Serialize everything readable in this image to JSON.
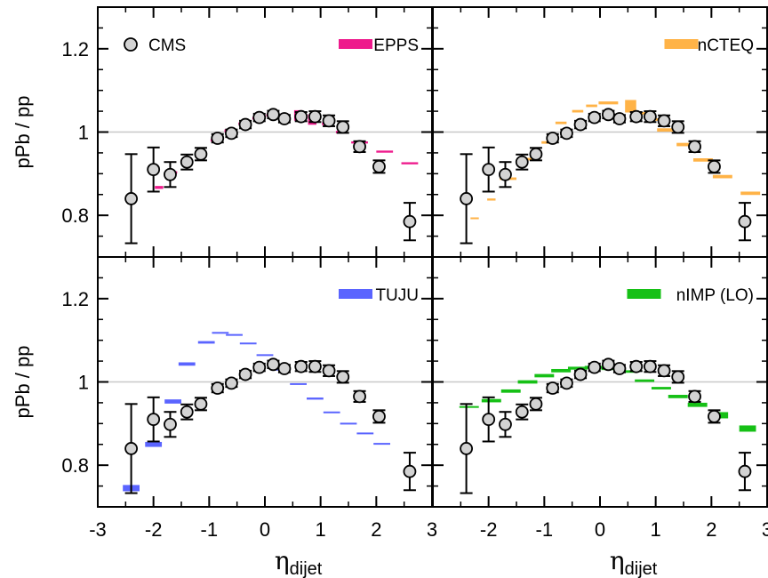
{
  "chart_data": {
    "type": "scatter",
    "xlabel_symbol": "η",
    "xlabel_subscript": "dijet",
    "ylabel": "pPb / pp",
    "xlim": [
      -3,
      3
    ],
    "ylim": [
      0.7,
      1.3
    ],
    "x_ticks": [
      "-3",
      "-2",
      "-1",
      "0",
      "1",
      "2",
      "3"
    ],
    "y_ticks": [
      "0.8",
      "1",
      "1.2"
    ],
    "reference_line": 1.0,
    "cms": {
      "name": "CMS",
      "x": [
        -2.4,
        -2.0,
        -1.7,
        -1.4,
        -1.15,
        -0.85,
        -0.6,
        -0.35,
        -0.1,
        0.15,
        0.35,
        0.65,
        0.9,
        1.15,
        1.4,
        1.7,
        2.05,
        2.6
      ],
      "y": [
        0.84,
        0.91,
        0.898,
        0.928,
        0.947,
        0.985,
        0.997,
        1.018,
        1.035,
        1.042,
        1.032,
        1.037,
        1.037,
        1.027,
        1.012,
        0.965,
        0.917,
        0.785
      ],
      "err": [
        0.107,
        0.053,
        0.03,
        0.018,
        0.015,
        0.01,
        0.009,
        0.009,
        0.009,
        0.009,
        0.009,
        0.011,
        0.013,
        0.013,
        0.014,
        0.013,
        0.015,
        0.045
      ]
    },
    "panels": [
      {
        "name": "EPPS",
        "color": "#ee1a8c",
        "points": [
          {
            "x": -1.9,
            "y": 0.867,
            "w": 0.15,
            "h": 0.007
          },
          {
            "x": -1.65,
            "y": 0.903,
            "w": 0.15,
            "h": 0.006
          },
          {
            "x": -1.4,
            "y": 0.93,
            "w": 0.15,
            "h": 0.006
          },
          {
            "x": -1.15,
            "y": 0.952,
            "w": 0.15,
            "h": 0.006
          },
          {
            "x": -0.9,
            "y": 0.98,
            "w": 0.15,
            "h": 0.006
          },
          {
            "x": -0.65,
            "y": 1.003,
            "w": 0.15,
            "h": 0.007
          },
          {
            "x": -0.4,
            "y": 1.02,
            "w": 0.15,
            "h": 0.006
          },
          {
            "x": -0.15,
            "y": 1.033,
            "w": 0.15,
            "h": 0.006
          },
          {
            "x": 0.1,
            "y": 1.04,
            "w": 0.15,
            "h": 0.006
          },
          {
            "x": 0.35,
            "y": 1.041,
            "w": 0.15,
            "h": 0.007
          },
          {
            "x": 0.6,
            "y": 1.04,
            "w": 0.15,
            "h": 0.025
          },
          {
            "x": 0.85,
            "y": 1.03,
            "w": 0.15,
            "h": 0.025
          },
          {
            "x": 1.1,
            "y": 1.02,
            "w": 0.15,
            "h": 0.007
          },
          {
            "x": 1.35,
            "y": 1.0,
            "w": 0.15,
            "h": 0.006
          },
          {
            "x": 1.7,
            "y": 0.975,
            "w": 0.3,
            "h": 0.005
          },
          {
            "x": 2.15,
            "y": 0.953,
            "w": 0.3,
            "h": 0.005
          },
          {
            "x": 2.6,
            "y": 0.925,
            "w": 0.3,
            "h": 0.005
          }
        ]
      },
      {
        "name": "nCTEQ",
        "color": "#ffb347",
        "points": [
          {
            "x": -2.25,
            "y": 0.793,
            "w": 0.15,
            "h": 0.004
          },
          {
            "x": -1.95,
            "y": 0.838,
            "w": 0.15,
            "h": 0.005
          },
          {
            "x": -1.65,
            "y": 0.888,
            "w": 0.3,
            "h": 0.006
          },
          {
            "x": -1.25,
            "y": 0.935,
            "w": 0.3,
            "h": 0.006
          },
          {
            "x": -0.95,
            "y": 0.975,
            "w": 0.2,
            "h": 0.006
          },
          {
            "x": -0.7,
            "y": 1.022,
            "w": 0.2,
            "h": 0.006
          },
          {
            "x": -0.4,
            "y": 1.05,
            "w": 0.2,
            "h": 0.006
          },
          {
            "x": -0.15,
            "y": 1.063,
            "w": 0.2,
            "h": 0.006
          },
          {
            "x": 0.15,
            "y": 1.07,
            "w": 0.35,
            "h": 0.007
          },
          {
            "x": 0.55,
            "y": 1.062,
            "w": 0.2,
            "h": 0.03
          },
          {
            "x": 0.8,
            "y": 1.045,
            "w": 0.2,
            "h": 0.006
          },
          {
            "x": 1.0,
            "y": 1.03,
            "w": 0.2,
            "h": 0.006
          },
          {
            "x": 1.2,
            "y": 1.005,
            "w": 0.35,
            "h": 0.008
          },
          {
            "x": 1.55,
            "y": 0.97,
            "w": 0.35,
            "h": 0.008
          },
          {
            "x": 1.85,
            "y": 0.933,
            "w": 0.35,
            "h": 0.008
          },
          {
            "x": 2.2,
            "y": 0.893,
            "w": 0.35,
            "h": 0.008
          },
          {
            "x": 2.7,
            "y": 0.853,
            "w": 0.35,
            "h": 0.008
          }
        ]
      },
      {
        "name": "TUJU",
        "color": "#5a64ff",
        "points": [
          {
            "x": -2.4,
            "y": 0.745,
            "w": 0.3,
            "h": 0.015
          },
          {
            "x": -2.0,
            "y": 0.85,
            "w": 0.3,
            "h": 0.012
          },
          {
            "x": -1.65,
            "y": 0.953,
            "w": 0.3,
            "h": 0.01
          },
          {
            "x": -1.4,
            "y": 1.043,
            "w": 0.3,
            "h": 0.008
          },
          {
            "x": -1.05,
            "y": 1.095,
            "w": 0.3,
            "h": 0.006
          },
          {
            "x": -0.8,
            "y": 1.118,
            "w": 0.3,
            "h": 0.004
          },
          {
            "x": -0.55,
            "y": 1.113,
            "w": 0.3,
            "h": 0.004
          },
          {
            "x": -0.3,
            "y": 1.093,
            "w": 0.3,
            "h": 0.003
          },
          {
            "x": 0.0,
            "y": 1.065,
            "w": 0.3,
            "h": 0.003
          },
          {
            "x": 0.3,
            "y": 1.03,
            "w": 0.3,
            "h": 0.003
          },
          {
            "x": 0.6,
            "y": 0.995,
            "w": 0.3,
            "h": 0.004
          },
          {
            "x": 0.9,
            "y": 0.96,
            "w": 0.3,
            "h": 0.005
          },
          {
            "x": 1.2,
            "y": 0.927,
            "w": 0.3,
            "h": 0.004
          },
          {
            "x": 1.5,
            "y": 0.9,
            "w": 0.3,
            "h": 0.004
          },
          {
            "x": 1.8,
            "y": 0.877,
            "w": 0.3,
            "h": 0.003
          },
          {
            "x": 2.1,
            "y": 0.852,
            "w": 0.3,
            "h": 0.003
          }
        ]
      },
      {
        "name": "nIMP (LO)",
        "color": "#16c016",
        "points": [
          {
            "x": -2.35,
            "y": 0.94,
            "w": 0.35,
            "h": 0.004
          },
          {
            "x": -1.95,
            "y": 0.955,
            "w": 0.35,
            "h": 0.008
          },
          {
            "x": -1.6,
            "y": 0.978,
            "w": 0.35,
            "h": 0.008
          },
          {
            "x": -1.3,
            "y": 1.0,
            "w": 0.35,
            "h": 0.008
          },
          {
            "x": -1.0,
            "y": 1.015,
            "w": 0.35,
            "h": 0.008
          },
          {
            "x": -0.7,
            "y": 1.027,
            "w": 0.35,
            "h": 0.008
          },
          {
            "x": -0.4,
            "y": 1.033,
            "w": 0.35,
            "h": 0.007
          },
          {
            "x": -0.1,
            "y": 1.035,
            "w": 0.35,
            "h": 0.007
          },
          {
            "x": 0.2,
            "y": 1.032,
            "w": 0.35,
            "h": 0.007
          },
          {
            "x": 0.5,
            "y": 1.025,
            "w": 0.35,
            "h": 0.006
          },
          {
            "x": 0.8,
            "y": 1.003,
            "w": 0.35,
            "h": 0.006
          },
          {
            "x": 1.1,
            "y": 0.985,
            "w": 0.35,
            "h": 0.006
          },
          {
            "x": 1.4,
            "y": 0.965,
            "w": 0.35,
            "h": 0.008
          },
          {
            "x": 1.75,
            "y": 0.945,
            "w": 0.35,
            "h": 0.01
          },
          {
            "x": 2.15,
            "y": 0.92,
            "w": 0.3,
            "h": 0.015
          },
          {
            "x": 2.65,
            "y": 0.888,
            "w": 0.3,
            "h": 0.015
          }
        ]
      }
    ]
  }
}
